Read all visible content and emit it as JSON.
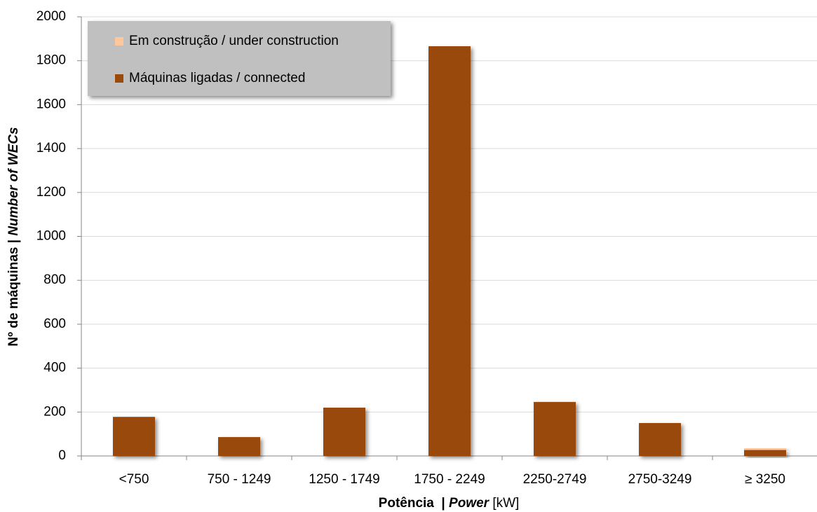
{
  "chart_data": {
    "type": "stacked_bar",
    "categories": [
      "<750",
      "750 - 1249",
      "1250 - 1749",
      "1750 - 2249",
      "2250-2749",
      "2750-3249",
      "≥ 3250"
    ],
    "series": [
      {
        "name": "Máquinas ligadas / connected",
        "color": "#9a4a0a",
        "values": [
          178,
          86,
          220,
          1866,
          246,
          150,
          27
        ]
      },
      {
        "name": "Em construção / under construction",
        "color": "#ffc89a",
        "values": [
          0,
          0,
          0,
          0,
          0,
          0,
          8
        ]
      }
    ],
    "legend_order": [
      1,
      0
    ],
    "x_label": {
      "bold": "Potência  | ",
      "italic": "Power",
      "rest": " [kW]"
    },
    "y_label": {
      "bold": "Nº de máquinas | ",
      "italic": "Number of WECs"
    },
    "ylim": [
      0,
      2000
    ],
    "yticks": [
      0,
      200,
      400,
      600,
      800,
      1000,
      1200,
      1400,
      1600,
      1800,
      2000
    ],
    "grid": true
  }
}
